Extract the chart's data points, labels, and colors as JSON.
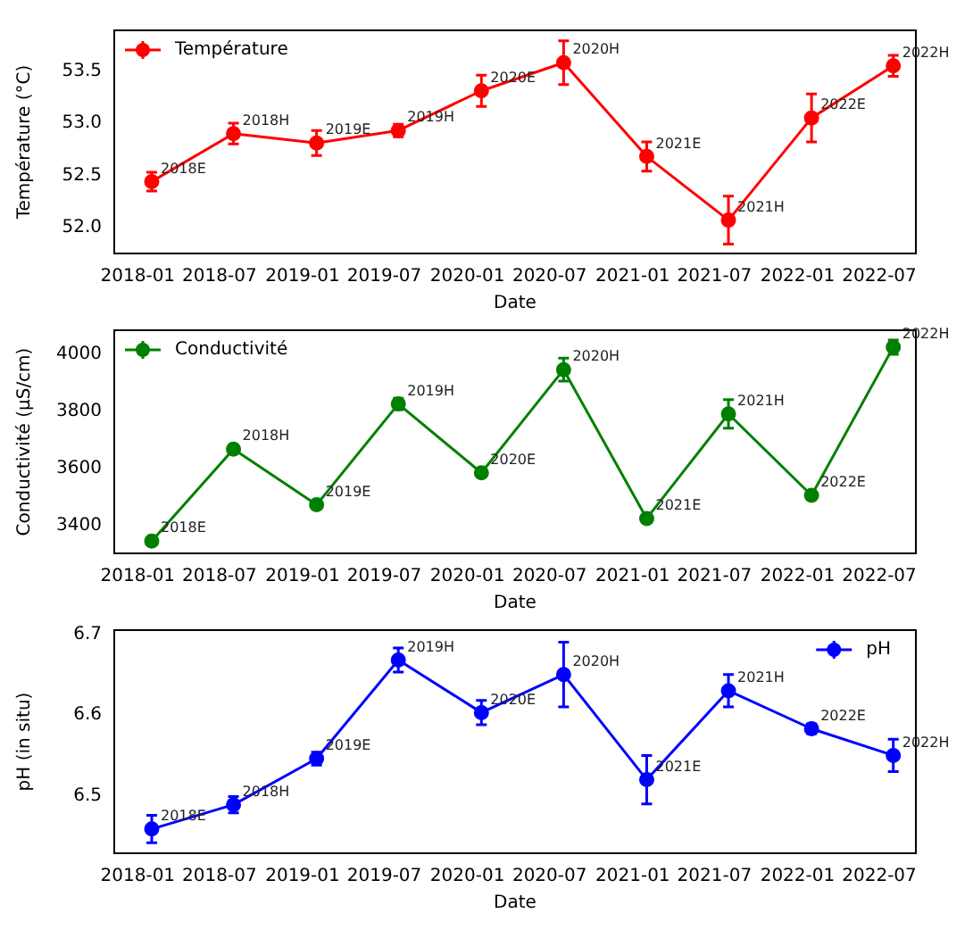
{
  "chart_data": [
    {
      "type": "line",
      "xlabel": "Date",
      "ylabel": "Température (°C)",
      "legend": "top left",
      "marker": "circle",
      "line_style": "solid",
      "x": [
        "2018-02-01",
        "2018-08-01",
        "2019-02-01",
        "2019-08-01",
        "2020-02-01",
        "2020-08-01",
        "2021-02-01",
        "2021-08-01",
        "2022-02-01",
        "2022-08-01"
      ],
      "xlim": [
        "2017-11-10",
        "2022-09-20"
      ],
      "xticks": [
        "2018-01",
        "2018-07",
        "2019-01",
        "2019-07",
        "2020-01",
        "2020-07",
        "2021-01",
        "2021-07",
        "2022-01",
        "2022-07"
      ],
      "ylim": [
        51.75,
        53.89
      ],
      "yticks": [
        {
          "value": 52,
          "label": "52.0"
        },
        52.5,
        {
          "value": 53,
          "label": "53.0"
        },
        53.5
      ],
      "series": [
        {
          "name": "Température",
          "color": "#ff0000",
          "values": [
            52.44,
            52.9,
            52.81,
            52.93,
            53.31,
            53.58,
            52.68,
            52.07,
            53.05,
            53.55
          ],
          "errors": [
            0.09,
            0.1,
            0.12,
            0.06,
            0.15,
            0.21,
            0.14,
            0.23,
            0.23,
            0.1
          ]
        }
      ],
      "annotations": [
        {
          "text": "2018E",
          "x": "2018-02-01",
          "y": 52.44
        },
        {
          "text": "2018H",
          "x": "2018-08-01",
          "y": 52.9
        },
        {
          "text": "2019E",
          "x": "2019-02-01",
          "y": 52.81
        },
        {
          "text": "2019H",
          "x": "2019-08-01",
          "y": 52.93
        },
        {
          "text": "2020E",
          "x": "2020-02-01",
          "y": 53.31
        },
        {
          "text": "2020H",
          "x": "2020-08-01",
          "y": 53.58
        },
        {
          "text": "2021E",
          "x": "2021-02-01",
          "y": 52.68
        },
        {
          "text": "2021H",
          "x": "2021-08-01",
          "y": 52.07
        },
        {
          "text": "2022E",
          "x": "2022-02-01",
          "y": 53.05
        },
        {
          "text": "2022H",
          "x": "2022-08-01",
          "y": 53.55
        }
      ]
    },
    {
      "type": "line",
      "xlabel": "Date",
      "ylabel": "Conductivité (µS/cm)",
      "legend": "top left",
      "marker": "circle",
      "line_style": "solid",
      "x": [
        "2018-02-01",
        "2018-08-01",
        "2019-02-01",
        "2019-08-01",
        "2020-02-01",
        "2020-08-01",
        "2021-02-01",
        "2021-08-01",
        "2022-02-01",
        "2022-08-01"
      ],
      "xlim": [
        "2017-11-10",
        "2022-09-20"
      ],
      "xticks": [
        "2018-01",
        "2018-07",
        "2019-01",
        "2019-07",
        "2020-01",
        "2020-07",
        "2021-01",
        "2021-07",
        "2022-01",
        "2022-07"
      ],
      "ylim": [
        3304,
        4085
      ],
      "yticks": [
        3400,
        3600,
        3800,
        4000
      ],
      "series": [
        {
          "name": "Conductivité",
          "color": "#008000",
          "values": [
            3347,
            3669,
            3474,
            3827,
            3586,
            3947,
            3426,
            3792,
            3507,
            4026
          ],
          "errors": [
            5,
            8,
            8,
            20,
            8,
            40,
            8,
            50,
            8,
            25
          ]
        }
      ],
      "annotations": [
        {
          "text": "2018E",
          "x": "2018-02-01",
          "y": 3347
        },
        {
          "text": "2018H",
          "x": "2018-08-01",
          "y": 3669
        },
        {
          "text": "2019E",
          "x": "2019-02-01",
          "y": 3474
        },
        {
          "text": "2019H",
          "x": "2019-08-01",
          "y": 3827
        },
        {
          "text": "2020E",
          "x": "2020-02-01",
          "y": 3586
        },
        {
          "text": "2020H",
          "x": "2020-08-01",
          "y": 3947
        },
        {
          "text": "2021E",
          "x": "2021-02-01",
          "y": 3426
        },
        {
          "text": "2021H",
          "x": "2021-08-01",
          "y": 3792
        },
        {
          "text": "2022E",
          "x": "2022-02-01",
          "y": 3507
        },
        {
          "text": "2022H",
          "x": "2022-08-01",
          "y": 4026
        }
      ]
    },
    {
      "type": "line",
      "xlabel": "Date",
      "ylabel": "pH (in situ)",
      "legend": "top right",
      "marker": "circle",
      "line_style": "solid",
      "x": [
        "2018-02-01",
        "2018-08-01",
        "2019-02-01",
        "2019-08-01",
        "2020-02-01",
        "2020-08-01",
        "2021-02-01",
        "2021-08-01",
        "2022-02-01",
        "2022-08-01"
      ],
      "xlim": [
        "2017-11-10",
        "2022-09-20"
      ],
      "xticks": [
        "2018-01",
        "2018-07",
        "2019-01",
        "2019-07",
        "2020-01",
        "2020-07",
        "2021-01",
        "2021-07",
        "2022-01",
        "2022-07"
      ],
      "ylim": [
        6.429,
        6.705
      ],
      "yticks": [
        6.5,
        6.6,
        6.7
      ],
      "series": [
        {
          "name": "pH",
          "color": "#0000ff",
          "values": [
            6.459,
            6.489,
            6.546,
            6.668,
            6.603,
            6.65,
            6.52,
            6.63,
            6.583,
            6.55
          ],
          "errors": [
            0.017,
            0.01,
            0.008,
            0.015,
            0.015,
            0.04,
            0.03,
            0.02,
            0.006,
            0.02
          ]
        }
      ],
      "annotations": [
        {
          "text": "2018E",
          "x": "2018-02-01",
          "y": 6.459
        },
        {
          "text": "2018H",
          "x": "2018-08-01",
          "y": 6.489
        },
        {
          "text": "2019E",
          "x": "2019-02-01",
          "y": 6.546
        },
        {
          "text": "2019H",
          "x": "2019-08-01",
          "y": 6.668
        },
        {
          "text": "2020E",
          "x": "2020-02-01",
          "y": 6.603
        },
        {
          "text": "2020H",
          "x": "2020-08-01",
          "y": 6.65
        },
        {
          "text": "2021E",
          "x": "2021-02-01",
          "y": 6.52
        },
        {
          "text": "2021H",
          "x": "2021-08-01",
          "y": 6.63
        },
        {
          "text": "2022E",
          "x": "2022-02-01",
          "y": 6.583
        },
        {
          "text": "2022H",
          "x": "2022-08-01",
          "y": 6.55
        }
      ]
    }
  ]
}
